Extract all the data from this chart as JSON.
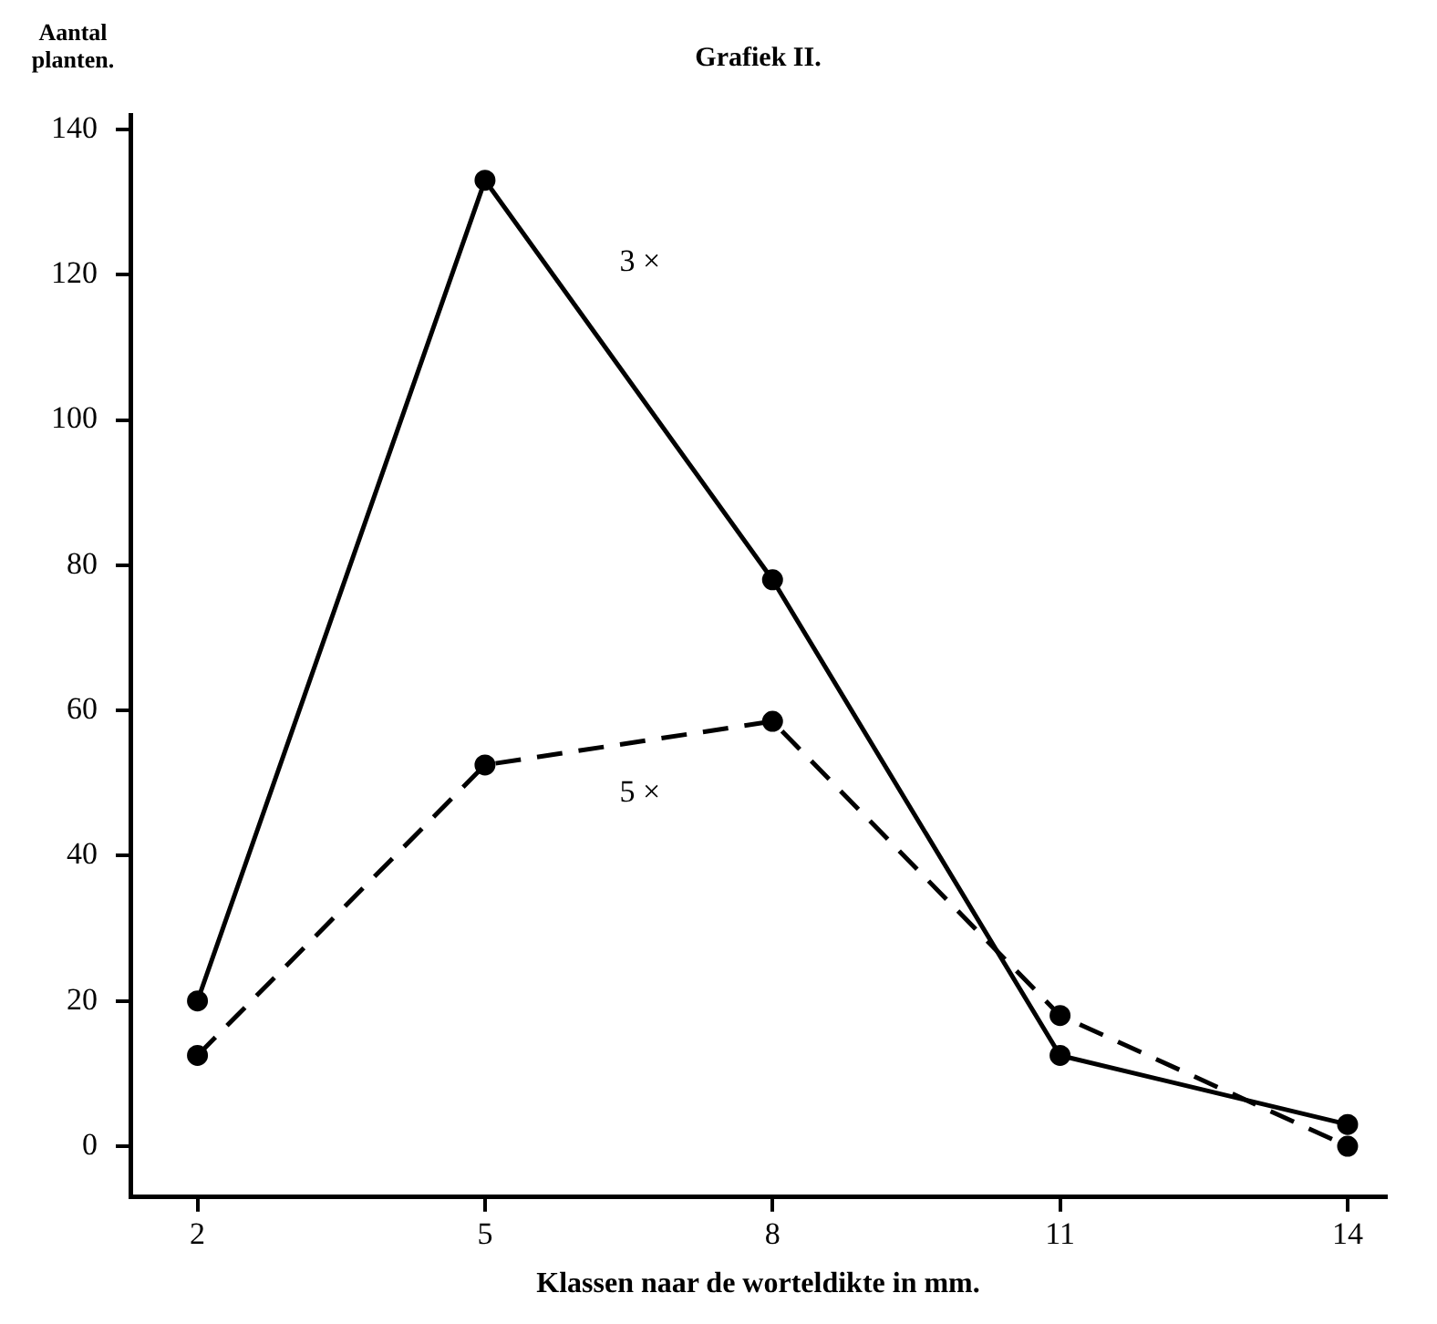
{
  "chart_data": {
    "type": "line",
    "title": "Grafiek II.",
    "ylabel": "Aantal planten.",
    "xlabel": "Klassen naar de worteldikte in mm.",
    "x": [
      2,
      5,
      8,
      11,
      14
    ],
    "xlim": [
      1.3,
      14.4
    ],
    "xticks": [
      2,
      5,
      8,
      11,
      14
    ],
    "ylim": [
      -7,
      142
    ],
    "yticks": [
      0,
      20,
      40,
      60,
      80,
      100,
      120,
      140
    ],
    "grid": false,
    "legend": false,
    "marker": "circle",
    "series": [
      {
        "name": "3 ×",
        "color": "#000000",
        "line_style": "solid",
        "values": [
          20,
          133,
          78,
          12.5,
          3
        ]
      },
      {
        "name": "5 ×",
        "color": "#000000",
        "line_style": "dashed",
        "values": [
          12.5,
          52.5,
          58.5,
          18,
          0
        ]
      }
    ]
  }
}
